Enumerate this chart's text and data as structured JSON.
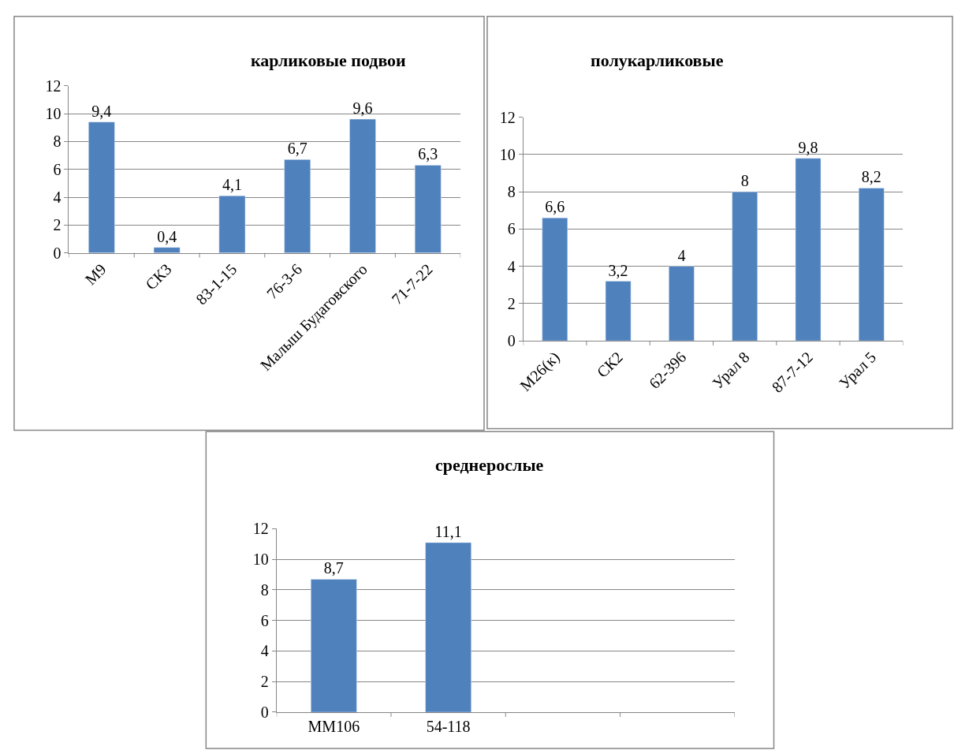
{
  "chart_data": [
    {
      "type": "bar",
      "title": "карликовые подвои",
      "categories": [
        "М9",
        "СК3",
        "83-1-15",
        "76-3-6",
        "Малыш Будаговского",
        "71-7-22"
      ],
      "values": [
        9.4,
        0.4,
        4.1,
        6.7,
        9.6,
        6.3
      ],
      "value_labels": [
        "9,4",
        "0,4",
        "4,1",
        "6,7",
        "9,6",
        "6,3"
      ],
      "color": "#4f81bd",
      "ylim": [
        0,
        12
      ],
      "yticks": [
        0,
        2,
        4,
        6,
        8,
        10,
        12
      ],
      "grid": "y"
    },
    {
      "type": "bar",
      "title": "полукарликовые",
      "categories": [
        "М26(к)",
        "СК2",
        "62-396",
        "Урал 8",
        "87-7-12",
        "Урал 5"
      ],
      "values": [
        6.6,
        3.2,
        4,
        8,
        9.8,
        8.2
      ],
      "value_labels": [
        "6,6",
        "3,2",
        "4",
        "8",
        "9,8",
        "8,2"
      ],
      "color": "#4f81bd",
      "ylim": [
        0,
        12
      ],
      "yticks": [
        0,
        2,
        4,
        6,
        8,
        10,
        12
      ],
      "grid": "y"
    },
    {
      "type": "bar",
      "title": "среднерослые",
      "categories": [
        "ММ106",
        "54-118",
        null,
        null
      ],
      "values": [
        8.7,
        11.1,
        null,
        null
      ],
      "value_labels": [
        "8,7",
        "11,1",
        null,
        null
      ],
      "color": "#4f81bd",
      "ylim": [
        0,
        12
      ],
      "yticks": [
        0,
        2,
        4,
        6,
        8,
        10,
        12
      ],
      "grid": "y"
    }
  ]
}
